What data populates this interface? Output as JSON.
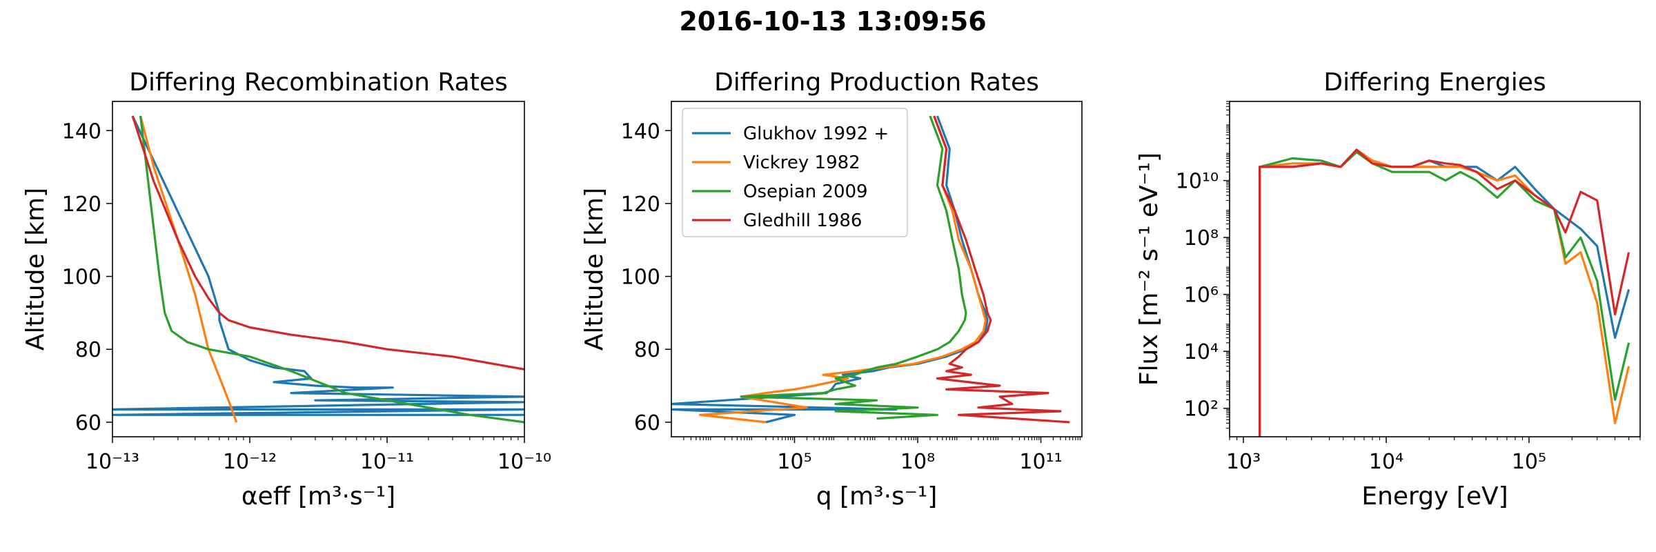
{
  "figure_title": "2016-10-13 13:09:56",
  "colors": {
    "Glukhov 1992 +": "#1f77b4",
    "Vickrey 1982": "#ff7f0e",
    "Osepian 2009": "#2ca02c",
    "Gledhill 1986": "#d62728"
  },
  "chart_data": [
    {
      "type": "line",
      "title": "Differing Recombination Rates",
      "xlabel": "αeff [m³·s⁻¹]",
      "ylabel": "Altitude [km]",
      "xscale": "log",
      "xlim": [
        1e-13,
        1e-10
      ],
      "ylim": [
        56,
        148
      ],
      "xticks": [
        {
          "v": 1e-13,
          "label": "10⁻¹³"
        },
        {
          "v": 1e-12,
          "label": "10⁻¹²"
        },
        {
          "v": 1e-11,
          "label": "10⁻¹¹"
        },
        {
          "v": 1e-10,
          "label": "10⁻¹⁰"
        }
      ],
      "yticks": [
        60,
        80,
        100,
        120,
        140
      ],
      "series": [
        {
          "name": "Glukhov 1992 +",
          "x": [
            1.4e-13,
            5e-13,
            6e-13,
            6e-13,
            7e-13,
            1e-12,
            1.5e-12,
            2.5e-12,
            2.8e-12,
            1.5e-12,
            3e-12,
            6e-12,
            1.1e-11,
            2e-12,
            1e-10,
            3e-12,
            1e-10,
            1e-13,
            1e-10,
            1e-13,
            1e-10
          ],
          "y": [
            144,
            100,
            90,
            88,
            80,
            77,
            75,
            74,
            72,
            71,
            70,
            69.5,
            69.5,
            68,
            67,
            66,
            65.5,
            63.5,
            63.5,
            62,
            62
          ]
        },
        {
          "name": "Vickrey 1982",
          "x": [
            1.6e-13,
            2e-13,
            3e-13,
            4e-13,
            5e-13,
            7e-13,
            8e-13
          ],
          "y": [
            144,
            130,
            110,
            95,
            80,
            66,
            60
          ]
        },
        {
          "name": "Osepian 2009",
          "x": [
            1.6e-13,
            1.9e-13,
            2.2e-13,
            2.4e-13,
            2.7e-13,
            3.5e-13,
            5e-13,
            1e-12,
            2e-12,
            5e-12,
            1e-11,
            2e-11,
            4e-11,
            1e-10
          ],
          "y": [
            144,
            120,
            100,
            90,
            85,
            82,
            80,
            78,
            74,
            68,
            66,
            64,
            62,
            60
          ]
        },
        {
          "name": "Gledhill 1986",
          "x": [
            1.4e-13,
            2e-13,
            3e-13,
            4e-13,
            5e-13,
            6e-13,
            7e-13,
            1e-12,
            2e-12,
            5e-12,
            1e-11,
            3e-11,
            1e-10
          ],
          "y": [
            144,
            126,
            110,
            100,
            94,
            90,
            88,
            86,
            84,
            82,
            80,
            78,
            74.5
          ]
        }
      ]
    },
    {
      "type": "line",
      "title": "Differing Production Rates",
      "xlabel": "q [m³·s⁻¹]",
      "ylabel": "Altitude [km]",
      "xscale": "log",
      "xlim": [
        100,
        1000000000000.0
      ],
      "ylim": [
        56,
        148
      ],
      "xticks": [
        {
          "v": 100000.0,
          "label": "10⁵"
        },
        {
          "v": 100000000.0,
          "label": "10⁸"
        },
        {
          "v": 100000000000.0,
          "label": "10¹¹"
        }
      ],
      "yticks": [
        60,
        80,
        100,
        120,
        140
      ],
      "legend": "top-left",
      "series": [
        {
          "name": "Glukhov 1992 +",
          "x": [
            300000000.0,
            600000000.0,
            500000000.0,
            800000000.0,
            1200000000.0,
            2000000000.0,
            3000000000.0,
            4500000000.0,
            5000000000.0,
            4500000000.0,
            3000000000.0,
            1500000000.0,
            500000000.0,
            100000000.0,
            20000000.0,
            8000000.0,
            1500000.0,
            4000000.0,
            1000000.0,
            800000.0,
            600000.0,
            40000.0,
            100,
            30000000.0,
            100,
            100000.0,
            20000.0
          ],
          "y": [
            144,
            135,
            125,
            118,
            110,
            102,
            95,
            90,
            88,
            85,
            82,
            80,
            78,
            76,
            75,
            74,
            73,
            72,
            70.5,
            69,
            68,
            67,
            65,
            63.5,
            63.5,
            62,
            60
          ]
        },
        {
          "name": "Vickrey 1982",
          "x": [
            250000000.0,
            500000000.0,
            400000000.0,
            700000000.0,
            1000000000.0,
            2000000000.0,
            3000000000.0,
            4000000000.0,
            4500000000.0,
            4000000000.0,
            2500000000.0,
            1200000000.0,
            400000000.0,
            80000000.0,
            15000000.0,
            3000000.0,
            500000.0,
            2000000.0,
            300000.0,
            100000.0,
            20000.0,
            5000.0,
            200000.0,
            500.0,
            20000.0
          ],
          "y": [
            144,
            135,
            125,
            118,
            110,
            102,
            95,
            90,
            88,
            85,
            82,
            80,
            78,
            76,
            75,
            74,
            73,
            72,
            70,
            69,
            68,
            67,
            64,
            62,
            60
          ]
        },
        {
          "name": "Osepian 2009",
          "x": [
            200000000.0,
            400000000.0,
            300000000.0,
            500000000.0,
            700000000.0,
            1000000000.0,
            1200000000.0,
            1500000000.0,
            1400000000.0,
            1000000000.0,
            600000000.0,
            300000000.0,
            100000000.0,
            30000000.0,
            10000000.0,
            5000000.0,
            3000000.0,
            1000000.0,
            3000000.0,
            1000000.0,
            500000.0,
            5000.0,
            10000000.0,
            1000000.0,
            100000000.0,
            1000000.0,
            300000000.0,
            10000000.0
          ],
          "y": [
            144,
            135,
            125,
            118,
            110,
            102,
            95,
            90,
            88,
            85,
            82,
            80,
            78,
            76,
            75,
            74,
            73,
            72,
            70,
            69,
            68,
            67,
            66,
            65,
            64,
            63,
            62,
            61
          ]
        },
        {
          "name": "Gledhill 1986",
          "x": [
            250000000.0,
            500000000.0,
            400000000.0,
            800000000.0,
            1500000000.0,
            2500000000.0,
            4000000000.0,
            5000000000.0,
            6000000000.0,
            5000000000.0,
            3000000000.0,
            1500000000.0,
            1000000000.0,
            600000000.0,
            1200000000.0,
            500000000.0,
            2000000000.0,
            300000000.0,
            10000000000.0,
            500000000.0,
            150000000000.0,
            10000000000.0,
            20000000000.0,
            3000000000.0,
            300000000000.0,
            1000000000.0,
            500000000000.0
          ],
          "y": [
            144,
            135,
            125,
            118,
            110,
            102,
            95,
            90,
            88,
            85,
            82,
            80,
            78,
            76,
            75,
            74,
            73,
            72,
            70,
            69,
            68,
            67,
            65,
            64,
            63,
            62,
            60
          ]
        }
      ]
    },
    {
      "type": "line",
      "title": "Differing Energies",
      "xlabel": "Energy [eV]",
      "ylabel": "Flux [m⁻² s⁻¹ eV⁻¹]",
      "xscale": "log",
      "yscale": "log",
      "xlim": [
        800,
        600000
      ],
      "ylim": [
        10,
        6000000000000.0
      ],
      "xticks": [
        {
          "v": 1000,
          "label": "10³"
        },
        {
          "v": 10000,
          "label": "10⁴"
        },
        {
          "v": 100000,
          "label": "10⁵"
        }
      ],
      "yticks": [
        {
          "v": 100,
          "label": "10²"
        },
        {
          "v": 10000,
          "label": "10⁴"
        },
        {
          "v": 1000000,
          "label": "10⁶"
        },
        {
          "v": 100000000,
          "label": "10⁸"
        },
        {
          "v": 10000000000,
          "label": "10¹⁰"
        }
      ],
      "series": [
        {
          "name": "Glukhov 1992 +",
          "x": [
            1300,
            1300,
            2200,
            3500,
            4800,
            6200,
            8000,
            11000,
            15000,
            20000,
            26000,
            33000,
            43000,
            60000,
            80000,
            110000,
            150000,
            230000,
            300000,
            400000,
            500000
          ],
          "y": [
            10,
            30000000000.0,
            30000000000.0,
            40000000000.0,
            30000000000.0,
            120000000000.0,
            50000000000.0,
            30000000000.0,
            30000000000.0,
            50000000000.0,
            30000000000.0,
            30000000000.0,
            30000000000.0,
            10000000000.0,
            30000000000.0,
            5000000000.0,
            1000000000.0,
            200000000.0,
            50000000.0,
            30000.0,
            1500000.0
          ]
        },
        {
          "name": "Vickrey 1982",
          "x": [
            1300,
            1300,
            2200,
            3500,
            4800,
            6200,
            8000,
            11000,
            15000,
            20000,
            26000,
            33000,
            43000,
            60000,
            80000,
            110000,
            150000,
            180000,
            230000,
            300000,
            400000,
            500000
          ],
          "y": [
            10,
            30000000000.0,
            40000000000.0,
            40000000000.0,
            30000000000.0,
            120000000000.0,
            50000000000.0,
            30000000000.0,
            30000000000.0,
            30000000000.0,
            30000000000.0,
            30000000000.0,
            20000000000.0,
            10000000000.0,
            15000000000.0,
            3000000000.0,
            1000000000.0,
            12000000.0,
            30000000.0,
            500000.0,
            30,
            3000
          ]
        },
        {
          "name": "Osepian 2009",
          "x": [
            1300,
            1300,
            2200,
            3500,
            4800,
            6200,
            8000,
            11000,
            15000,
            20000,
            26000,
            33000,
            43000,
            60000,
            80000,
            110000,
            150000,
            180000,
            230000,
            300000,
            400000,
            500000
          ],
          "y": [
            10,
            30000000000.0,
            60000000000.0,
            50000000000.0,
            30000000000.0,
            100000000000.0,
            40000000000.0,
            20000000000.0,
            20000000000.0,
            20000000000.0,
            10000000000.0,
            20000000000.0,
            10000000000.0,
            2500000000.0,
            10000000000.0,
            2000000000.0,
            1000000000.0,
            20000000.0,
            100000000.0,
            3000000.0,
            200,
            20000.0
          ]
        },
        {
          "name": "Gledhill 1986",
          "x": [
            1300,
            1300,
            2200,
            3500,
            4800,
            6200,
            8000,
            11000,
            15000,
            20000,
            26000,
            33000,
            43000,
            60000,
            80000,
            110000,
            150000,
            180000,
            230000,
            300000,
            400000,
            500000
          ],
          "y": [
            10,
            30000000000.0,
            30000000000.0,
            40000000000.0,
            30000000000.0,
            120000000000.0,
            40000000000.0,
            30000000000.0,
            30000000000.0,
            50000000000.0,
            40000000000.0,
            35000000000.0,
            20000000000.0,
            5000000000.0,
            10000000000.0,
            3000000000.0,
            1000000000.0,
            150000000.0,
            4000000000.0,
            2000000000.0,
            200000.0,
            30000000.0
          ]
        }
      ]
    }
  ]
}
